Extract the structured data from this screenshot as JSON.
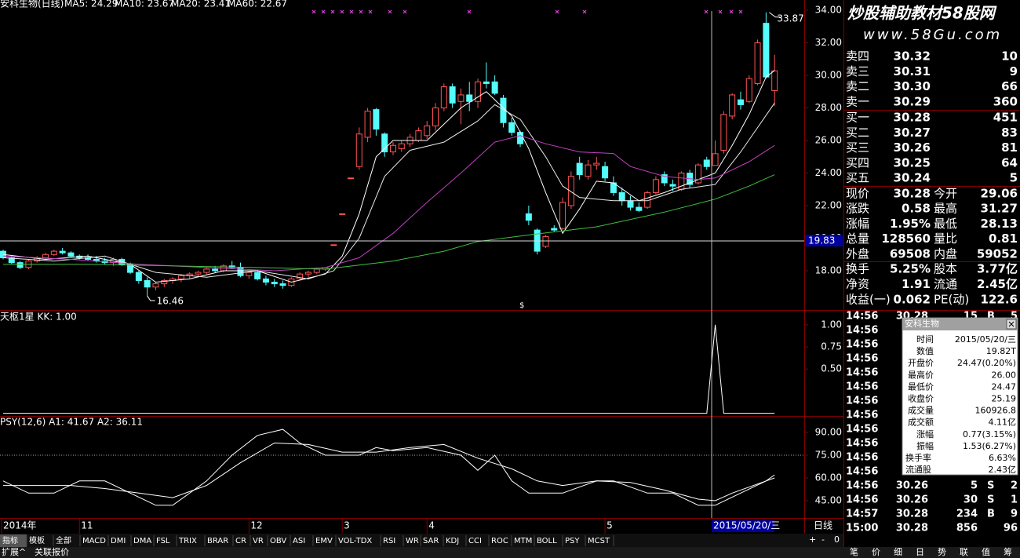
{
  "header": {
    "title": "安科生物(日线)",
    "ma": [
      "MA5: 24.29",
      "MA10: 23.67",
      "MA20: 23.41",
      "MA60: 22.67"
    ],
    "watermark": [
      "炒股辅助教材",
      "58股网",
      "www.58Gu.com"
    ]
  },
  "price_chart": {
    "xlim": [
      -0.37,
      94.5
    ],
    "ylim": [
      15.59,
      34.63
    ],
    "yticks": [
      {
        "value": 34,
        "label": "34.00"
      },
      {
        "value": 32,
        "label": "32.00"
      },
      {
        "value": 30,
        "label": "30.00"
      },
      {
        "value": 28,
        "label": "28.00"
      },
      {
        "value": 26,
        "label": "26.00"
      },
      {
        "value": 24,
        "label": "24.00"
      },
      {
        "value": 22,
        "label": "22.00"
      },
      {
        "value": 20,
        "label": "20.00"
      },
      {
        "value": 18,
        "label": "18.00"
      }
    ],
    "cursor_price": 19.83,
    "high": 33.87,
    "low": 16.46,
    "marker": "$",
    "candles": [
      [
        19.2,
        19.3,
        18.7,
        18.8
      ],
      [
        18.8,
        18.9,
        18.4,
        18.5
      ],
      [
        18.5,
        18.6,
        18.1,
        18.2
      ],
      [
        18.2,
        18.7,
        18.1,
        18.6
      ],
      [
        18.6,
        18.9,
        18.5,
        18.8
      ],
      [
        18.8,
        19.1,
        18.7,
        19.0
      ],
      [
        19.0,
        19.3,
        18.9,
        19.2
      ],
      [
        19.2,
        19.4,
        19.0,
        19.1
      ],
      [
        19.1,
        19.2,
        18.8,
        18.9
      ],
      [
        18.9,
        19.0,
        18.7,
        18.8
      ],
      [
        18.8,
        19.0,
        18.6,
        18.7
      ],
      [
        18.7,
        18.9,
        18.5,
        18.6
      ],
      [
        18.6,
        18.8,
        18.4,
        18.5
      ],
      [
        18.5,
        18.8,
        18.3,
        18.7
      ],
      [
        18.7,
        18.8,
        18.3,
        18.4
      ],
      [
        18.4,
        18.5,
        17.8,
        17.9
      ],
      [
        17.9,
        18.0,
        17.2,
        17.4
      ],
      [
        17.4,
        17.6,
        16.46,
        17.0
      ],
      [
        17.0,
        17.3,
        16.8,
        17.2
      ],
      [
        17.2,
        17.5,
        17.0,
        17.4
      ],
      [
        17.4,
        17.6,
        17.2,
        17.5
      ],
      [
        17.5,
        17.8,
        17.3,
        17.7
      ],
      [
        17.7,
        17.9,
        17.5,
        17.8
      ],
      [
        17.8,
        18.0,
        17.6,
        17.9
      ],
      [
        17.9,
        18.2,
        17.8,
        18.1
      ],
      [
        18.1,
        18.3,
        17.9,
        18.0
      ],
      [
        18.0,
        18.4,
        17.9,
        18.3
      ],
      [
        18.3,
        18.6,
        18.1,
        18.2
      ],
      [
        18.2,
        18.5,
        17.6,
        17.7
      ],
      [
        17.7,
        18.0,
        17.5,
        17.9
      ],
      [
        17.9,
        18.0,
        17.4,
        17.5
      ],
      [
        17.5,
        17.7,
        17.1,
        17.3
      ],
      [
        17.3,
        17.5,
        17.0,
        17.2
      ],
      [
        17.2,
        17.4,
        16.9,
        17.1
      ],
      [
        17.1,
        17.6,
        17.0,
        17.5
      ],
      [
        17.5,
        17.9,
        17.4,
        17.8
      ],
      [
        17.8,
        18.0,
        17.6,
        17.9
      ],
      [
        17.9,
        18.2,
        17.8,
        18.1
      ],
      [
        18.1,
        18.2,
        18.0,
        18.2
      ],
      [
        19.6,
        19.6,
        19.6,
        19.6
      ],
      [
        21.5,
        21.5,
        21.5,
        21.5
      ],
      [
        23.7,
        23.7,
        23.7,
        23.7
      ],
      [
        24.4,
        26.8,
        24.2,
        26.4
      ],
      [
        26.2,
        28.0,
        25.9,
        27.8
      ],
      [
        27.9,
        28.0,
        26.3,
        26.7
      ],
      [
        26.4,
        26.5,
        25.0,
        25.3
      ],
      [
        25.3,
        25.9,
        25.1,
        25.7
      ],
      [
        25.5,
        26.0,
        25.3,
        25.8
      ],
      [
        25.8,
        26.4,
        25.6,
        26.2
      ],
      [
        26.0,
        26.8,
        25.9,
        26.6
      ],
      [
        26.3,
        27.2,
        26.1,
        26.9
      ],
      [
        26.9,
        28.3,
        26.6,
        28.0
      ],
      [
        28.0,
        29.5,
        27.8,
        29.3
      ],
      [
        29.3,
        29.5,
        28.0,
        28.3
      ],
      [
        28.4,
        29.2,
        27.0,
        28.8
      ],
      [
        28.8,
        29.6,
        27.8,
        28.4
      ],
      [
        28.4,
        29.8,
        28.0,
        29.6
      ],
      [
        29.6,
        30.8,
        29.2,
        29.5
      ],
      [
        29.6,
        30.0,
        28.8,
        28.9
      ],
      [
        28.6,
        28.8,
        26.8,
        27.1
      ],
      [
        27.1,
        27.4,
        26.3,
        26.5
      ],
      [
        26.5,
        26.6,
        25.6,
        25.8
      ],
      [
        21.5,
        22.0,
        20.8,
        21.1
      ],
      [
        20.5,
        20.6,
        19.0,
        19.2
      ],
      [
        19.5,
        20.2,
        19.4,
        20.1
      ],
      [
        20.6,
        20.8,
        20.4,
        20.5
      ],
      [
        20.6,
        22.5,
        20.5,
        22.2
      ],
      [
        22.0,
        24.1,
        21.8,
        23.8
      ],
      [
        24.6,
        25.0,
        23.6,
        23.9
      ],
      [
        23.8,
        24.8,
        23.6,
        24.5
      ],
      [
        24.5,
        25.0,
        24.2,
        24.6
      ],
      [
        24.4,
        24.7,
        23.5,
        23.7
      ],
      [
        23.4,
        23.8,
        22.6,
        22.8
      ],
      [
        22.8,
        23.1,
        22.0,
        22.3
      ],
      [
        22.3,
        22.6,
        21.7,
        21.9
      ],
      [
        21.9,
        22.2,
        21.6,
        21.7
      ],
      [
        21.9,
        22.9,
        21.8,
        22.8
      ],
      [
        22.8,
        23.8,
        22.7,
        23.6
      ],
      [
        23.9,
        24.1,
        23.2,
        23.4
      ],
      [
        23.3,
        23.6,
        22.9,
        23.2
      ],
      [
        23.0,
        24.1,
        22.9,
        24.0
      ],
      [
        24.0,
        24.2,
        23.1,
        23.3
      ],
      [
        23.4,
        24.6,
        23.3,
        24.5
      ],
      [
        24.8,
        25.0,
        24.2,
        24.4
      ],
      [
        24.47,
        26.0,
        24.47,
        25.19
      ],
      [
        25.4,
        27.8,
        25.2,
        27.6
      ],
      [
        27.5,
        28.9,
        27.3,
        28.8
      ],
      [
        28.5,
        29.0,
        27.9,
        28.2
      ],
      [
        28.4,
        30.0,
        28.3,
        29.8
      ],
      [
        29.5,
        32.2,
        29.4,
        32.0
      ],
      [
        33.2,
        33.87,
        29.8,
        29.9
      ],
      [
        29.06,
        31.27,
        28.13,
        30.28
      ]
    ],
    "series": [
      {
        "name": "MA5",
        "color": "#ffffff",
        "x": [
          0,
          5,
          10,
          15,
          18,
          22,
          26,
          30,
          34,
          38,
          40,
          42,
          44,
          46,
          50,
          54,
          57,
          60,
          62,
          64,
          66,
          68,
          70,
          72,
          75,
          78,
          81,
          84,
          86,
          88,
          90,
          91
        ],
        "values": [
          19.0,
          18.7,
          18.9,
          18.4,
          17.3,
          17.5,
          18.0,
          18.0,
          17.3,
          17.8,
          18.9,
          21.5,
          25.0,
          26.0,
          26.0,
          28.0,
          29.0,
          27.5,
          25.5,
          22.8,
          20.3,
          21.8,
          23.5,
          23.4,
          22.3,
          22.8,
          23.4,
          24.0,
          25.7,
          27.6,
          29.9,
          30.3
        ]
      },
      {
        "name": "MA10",
        "color": "#e8e8e8",
        "x": [
          0,
          6,
          12,
          18,
          24,
          30,
          36,
          39,
          42,
          45,
          48,
          52,
          56,
          58,
          61,
          64,
          66,
          68,
          72,
          76,
          80,
          84,
          87,
          91
        ],
        "values": [
          18.8,
          18.6,
          18.9,
          17.9,
          17.6,
          18.0,
          17.5,
          18.0,
          20.0,
          23.8,
          25.4,
          25.9,
          27.2,
          28.2,
          27.3,
          25.0,
          23.2,
          22.5,
          22.3,
          22.3,
          23.0,
          23.3,
          25.3,
          28.3
        ]
      },
      {
        "name": "MA20",
        "color": "#c040c0",
        "x": [
          0,
          8,
          16,
          24,
          32,
          38,
          42,
          46,
          50,
          54,
          58,
          61,
          64,
          68,
          72,
          74,
          78,
          82,
          84,
          88,
          91
        ],
        "values": [
          18.9,
          18.7,
          18.4,
          18.2,
          18.0,
          18.2,
          18.8,
          20.3,
          22.2,
          24.0,
          25.9,
          26.3,
          25.8,
          25.3,
          25.2,
          24.4,
          23.8,
          23.6,
          23.7,
          24.7,
          25.7
        ]
      },
      {
        "name": "MA60",
        "color": "#40c040",
        "x": [
          0,
          10,
          20,
          30,
          38,
          46,
          52,
          56,
          62,
          70,
          78,
          84,
          88,
          91
        ],
        "values": [
          18.4,
          18.4,
          18.3,
          18.2,
          18.1,
          18.6,
          19.2,
          19.8,
          20.2,
          20.7,
          21.6,
          22.4,
          23.2,
          23.9
        ]
      }
    ]
  },
  "kk_chart": {
    "title": "天枢1星  KK: 1.00",
    "ylim": [
      -0.03,
      1.14
    ],
    "yticks": [
      {
        "value": 1,
        "label": "1.00"
      },
      {
        "value": 0.75,
        "label": "0.75"
      },
      {
        "value": 0.5,
        "label": "0.50"
      }
    ],
    "series": [
      {
        "name": "KK",
        "color": "#ffffff",
        "x": [
          0,
          83,
          84,
          85,
          91
        ],
        "values": [
          0,
          0,
          1,
          0,
          0
        ]
      }
    ]
  },
  "psy_chart": {
    "title": "PSY(12,6)  A1: 41.67  A2: 36.11",
    "ylim": [
      33.6,
      99.8
    ],
    "yticks": [
      {
        "value": 90,
        "label": "90.00"
      },
      {
        "value": 75,
        "label": "75.00"
      },
      {
        "value": 60,
        "label": "60.00"
      },
      {
        "value": 45,
        "label": "45.00"
      }
    ],
    "ref_line": 75,
    "series": [
      {
        "name": "A1",
        "color": "#ffffff",
        "x": [
          0,
          3,
          6,
          9,
          12,
          15,
          18,
          20,
          24,
          27,
          30,
          33,
          35,
          38,
          40,
          42,
          44,
          46,
          50,
          54,
          56,
          58,
          60,
          62,
          66,
          70,
          72,
          76,
          79,
          82,
          84,
          87,
          90,
          91
        ],
        "values": [
          58,
          50,
          50,
          58,
          58,
          50,
          42,
          42,
          58,
          75,
          88,
          92,
          83,
          75,
          75,
          75,
          80,
          78,
          80,
          75,
          65,
          75,
          58,
          50,
          50,
          58,
          58,
          50,
          50,
          42,
          42,
          50,
          58,
          60
        ]
      },
      {
        "name": "A2",
        "color": "#ffffff",
        "x": [
          0,
          4,
          8,
          12,
          16,
          20,
          24,
          28,
          32,
          36,
          40,
          44,
          48,
          52,
          56,
          60,
          63,
          66,
          70,
          74,
          78,
          82,
          84,
          86,
          90,
          91
        ],
        "values": [
          55,
          55,
          55,
          53,
          50,
          47,
          55,
          70,
          83,
          82,
          77,
          77,
          80,
          82,
          73,
          66,
          58,
          55,
          58,
          57,
          52,
          46,
          45,
          50,
          58,
          62
        ]
      }
    ]
  },
  "date_axis": {
    "labels": [
      "2014年",
      "11",
      "12",
      "3",
      "4",
      "5"
    ],
    "cursor": "2015/05/20/三",
    "period": "日线"
  },
  "order_book": {
    "asks": [
      [
        "卖四",
        "30.32",
        "10"
      ],
      [
        "卖三",
        "30.31",
        "9"
      ],
      [
        "卖二",
        "30.30",
        "66"
      ],
      [
        "卖一",
        "30.29",
        "360"
      ]
    ],
    "bids": [
      [
        "买一",
        "30.28",
        "451"
      ],
      [
        "买二",
        "30.27",
        "83"
      ],
      [
        "买三",
        "30.26",
        "81"
      ],
      [
        "买四",
        "30.25",
        "64"
      ],
      [
        "买五",
        "30.24",
        "5"
      ]
    ]
  },
  "quote": [
    [
      "现价",
      "30.28",
      "今开",
      "29.06"
    ],
    [
      "涨跌",
      "0.58",
      "最高",
      "31.27"
    ],
    [
      "涨幅",
      "1.95%",
      "最低",
      "28.13"
    ],
    [
      "总量",
      "128560",
      "量比",
      "0.81"
    ],
    [
      "外盘",
      "69508",
      "内盘",
      "59052"
    ],
    [
      "换手",
      "5.25%",
      "股本",
      "3.77亿"
    ],
    [
      "净资",
      "1.91",
      "流通",
      "2.45亿"
    ],
    [
      "收益(一)",
      "0.062",
      "PE(动)",
      "122.6"
    ]
  ],
  "trades": [
    [
      "14:56",
      "30.28",
      "15",
      "B",
      "5"
    ],
    [
      "14:56"
    ],
    [
      "14:56"
    ],
    [
      "14:56"
    ],
    [
      "14:56"
    ],
    [
      "14:56"
    ],
    [
      "14:56"
    ],
    [
      "14:56"
    ],
    [
      "14:56"
    ],
    [
      "14:56"
    ],
    [
      "14:56"
    ],
    [
      "14:56"
    ],
    [
      "14:56",
      "30.26",
      "5",
      "S",
      "2"
    ],
    [
      "14:56",
      "30.26",
      "30",
      "S",
      "1"
    ],
    [
      "14:57",
      "30.28",
      "234",
      "B",
      "9"
    ],
    [
      "15:00",
      "30.28",
      "856",
      "96"
    ]
  ],
  "popup": {
    "title": "安科生物",
    "rows": [
      [
        "时间",
        "2015/05/20/三"
      ],
      [
        "数值",
        "19.82T"
      ],
      [
        "开盘价",
        "24.47(0.20%)"
      ],
      [
        "最高价",
        "26.00"
      ],
      [
        "最低价",
        "24.47"
      ],
      [
        "收盘价",
        "25.19"
      ],
      [
        "成交量",
        "160926.8"
      ],
      [
        "成交额",
        "4.11亿"
      ],
      [
        "涨幅",
        "0.77(3.15%)"
      ],
      [
        "振幅",
        "1.53(6.27%)"
      ],
      [
        "换手率",
        "6.63%"
      ],
      [
        "流通股",
        "2.43亿"
      ]
    ]
  },
  "toolbar": {
    "tabs": [
      "指标",
      "模板",
      "全部",
      "MACD",
      "DMI",
      "DMA",
      "FSL",
      "TRIX",
      "BRAR",
      "CR",
      "VR",
      "OBV",
      "ASI",
      "EMV",
      "VOL-TDX",
      "RSI",
      "WR",
      "SAR",
      "KDJ",
      "CCI",
      "ROC",
      "MTM",
      "BOLL",
      "PSY",
      "MCST"
    ],
    "bottom": [
      "扩展^",
      "关联报价"
    ],
    "controls": [
      "+",
      "-",
      "0"
    ],
    "side_tabs": [
      "笔",
      "价",
      "细",
      "日",
      "势",
      "联",
      "值",
      "筹"
    ]
  }
}
